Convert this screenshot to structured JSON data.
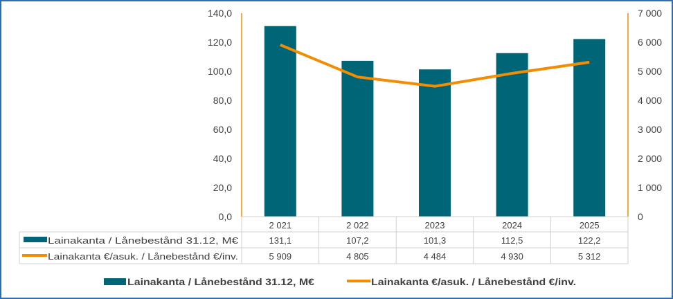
{
  "chart_data": {
    "type": "bar+line",
    "categories": [
      "2 021",
      "2 022",
      "2023",
      "2024",
      "2025"
    ],
    "series": [
      {
        "name": "Lainakanta / Lånebestånd 31.12, M€",
        "type": "bar",
        "axis": "left",
        "color": "#006577",
        "values": [
          131.1,
          107.2,
          101.3,
          112.5,
          122.2
        ],
        "labels": [
          "131,1",
          "107,2",
          "101,3",
          "112,5",
          "122,2"
        ]
      },
      {
        "name": "Lainakanta €/asuk. / Lånebestånd €/inv.",
        "type": "line",
        "axis": "right",
        "color": "#F28C00",
        "values": [
          5909,
          4805,
          4484,
          4930,
          5312
        ],
        "labels": [
          "5 909",
          "4 805",
          "4 484",
          "4 930",
          "5 312"
        ]
      }
    ],
    "left_axis": {
      "ylim": [
        0,
        140
      ],
      "ticks": [
        "0,0",
        "20,0",
        "40,0",
        "60,0",
        "80,0",
        "100,0",
        "120,0",
        "140,0"
      ]
    },
    "right_axis": {
      "ylim": [
        0,
        7000
      ],
      "ticks": [
        "0",
        "1 000",
        "2 000",
        "3 000",
        "4 000",
        "5 000",
        "6 000",
        "7 000"
      ],
      "color": "#F28C00"
    },
    "grid": false,
    "data_table": true,
    "legend_placement": "bottom"
  }
}
